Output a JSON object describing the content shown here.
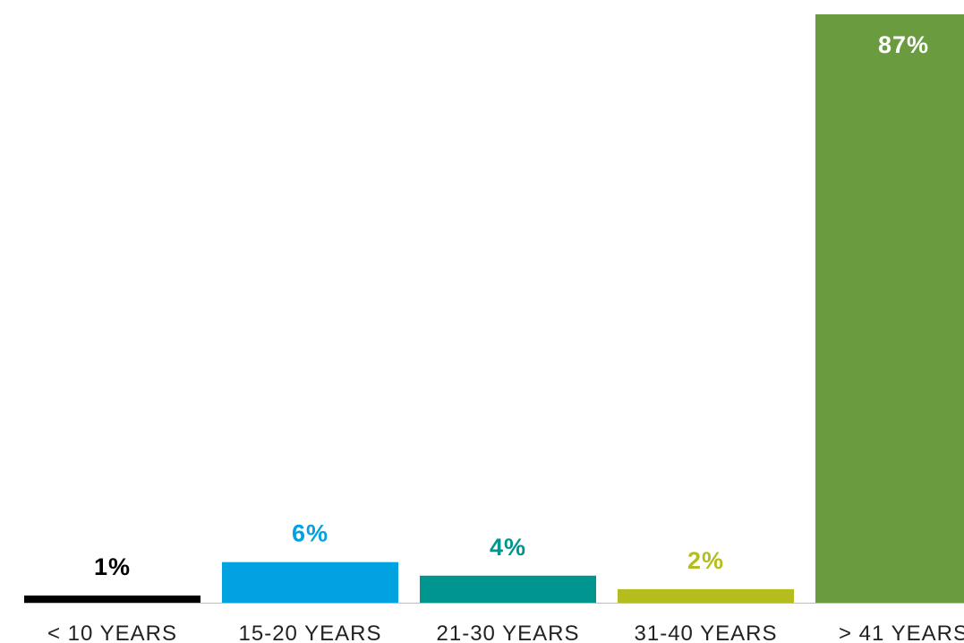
{
  "chart_data": {
    "type": "bar",
    "title": "",
    "xlabel": "",
    "ylabel": "",
    "categories": [
      "< 10 YEARS",
      "15-20 YEARS",
      "21-30 YEARS",
      "31-40 YEARS",
      "> 41 YEARS"
    ],
    "values": [
      1,
      6,
      4,
      2,
      87
    ],
    "value_labels": [
      "1%",
      "6%",
      "4%",
      "2%",
      "87%"
    ],
    "ylim": [
      0,
      87
    ],
    "grid": false,
    "legend": "none",
    "colors": [
      "#000000",
      "#00a3e0",
      "#00958f",
      "#b5bd1e",
      "#6a9c3f"
    ],
    "label_colors": [
      "#000000",
      "#00a3e0",
      "#00958f",
      "#b5bd1e",
      "#ffffff"
    ],
    "baseline_color": "#bdbdbd"
  }
}
